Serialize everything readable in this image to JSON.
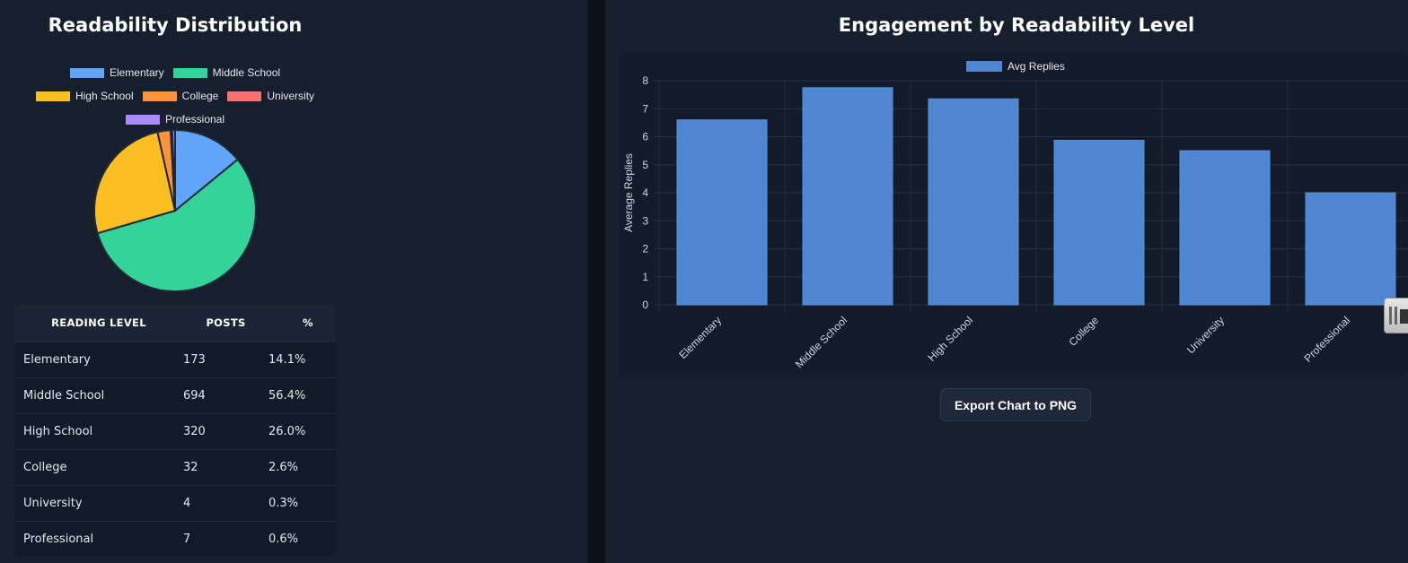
{
  "left": {
    "title": "Readability Distribution",
    "table": {
      "headers": [
        "READING LEVEL",
        "POSTS",
        "%"
      ],
      "rows": [
        {
          "level": "Elementary",
          "posts": "173",
          "pct": "14.1%"
        },
        {
          "level": "Middle School",
          "posts": "694",
          "pct": "56.4%"
        },
        {
          "level": "High School",
          "posts": "320",
          "pct": "26.0%"
        },
        {
          "level": "College",
          "posts": "32",
          "pct": "2.6%"
        },
        {
          "level": "University",
          "posts": "4",
          "pct": "0.3%"
        },
        {
          "level": "Professional",
          "posts": "7",
          "pct": "0.6%"
        }
      ]
    }
  },
  "right": {
    "title": "Engagement by Readability Level",
    "export_label": "Export Chart to PNG"
  },
  "colors": {
    "page_bg": "#0b101a",
    "panel_bg": "#161f2e",
    "bar": "#4f86d2",
    "pie_border": "#1f2937"
  },
  "chart_data": [
    {
      "type": "pie",
      "legend": [
        "Elementary",
        "Middle School",
        "High School",
        "College",
        "University",
        "Professional"
      ],
      "legend_position": "top",
      "values": [
        173,
        694,
        320,
        32,
        4,
        7
      ],
      "colors": [
        "#60a5fa",
        "#34d399",
        "#fbbf24",
        "#fb923c",
        "#f87171",
        "#a78bfa"
      ]
    },
    {
      "type": "bar",
      "legend": [
        "Avg Replies"
      ],
      "legend_position": "top",
      "categories": [
        "Elementary",
        "Middle School",
        "High School",
        "College",
        "University",
        "Professional"
      ],
      "values": [
        6.6,
        7.75,
        7.35,
        5.87,
        5.5,
        4.0
      ],
      "ylabel": "Average Replies",
      "ylim": [
        0,
        8
      ],
      "yticks": [
        "0",
        "1",
        "2",
        "3",
        "4",
        "5",
        "6",
        "7",
        "8"
      ],
      "grid": true,
      "color": "#4f86d2"
    }
  ]
}
